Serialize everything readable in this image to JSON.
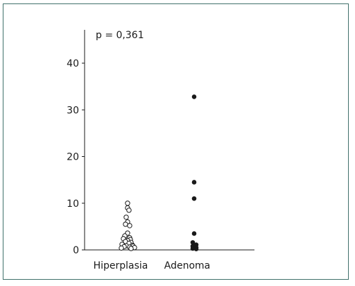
{
  "chart_data": {
    "type": "scatter",
    "annotation": "p = 0,361",
    "categories": [
      "Hiperplasia",
      "Adenoma"
    ],
    "ylim": [
      0,
      47
    ],
    "yticks": [
      0,
      10,
      20,
      30,
      40
    ],
    "xlabel": "",
    "ylabel": "",
    "grid": false,
    "series": [
      {
        "category": "Hiperplasia",
        "marker": "open-circle",
        "color": "#1a1a1a",
        "values": [
          10.0,
          9.0,
          8.5,
          7.0,
          6.0,
          5.5,
          5.2,
          3.6,
          3.0,
          2.6,
          2.4,
          2.2,
          2.0,
          1.8,
          1.6,
          1.4,
          1.2,
          1.0,
          0.9,
          0.8,
          0.7,
          0.6,
          0.5,
          0.4,
          0.3
        ]
      },
      {
        "category": "Adenoma",
        "marker": "filled-circle",
        "color": "#1a1a1a",
        "values": [
          32.8,
          14.5,
          11.0,
          3.5,
          1.6,
          1.1,
          0.8,
          0.5,
          0.3,
          0.2
        ]
      }
    ]
  }
}
